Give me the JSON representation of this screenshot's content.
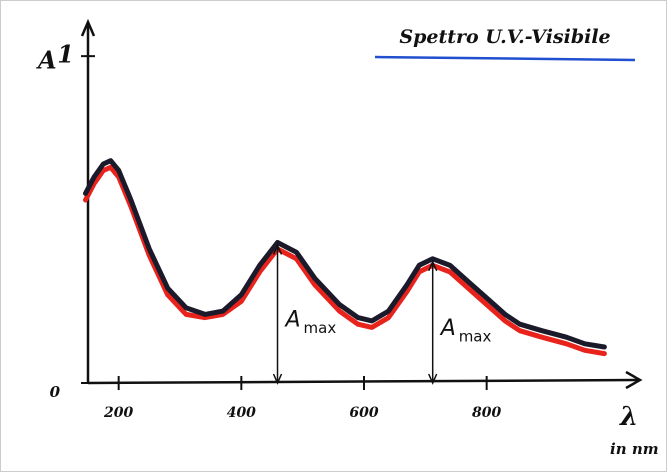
{
  "chart_data": {
    "type": "line",
    "title": "Spettro U.V.-Visibile",
    "y_label": "A",
    "x_label": "λ",
    "x_unit": "in nm",
    "x": [
      146,
      160,
      175,
      187,
      200,
      220,
      250,
      280,
      310,
      341,
      370,
      400,
      430,
      459,
      490,
      520,
      560,
      590,
      613,
      640,
      670,
      690,
      712,
      740,
      770,
      800,
      830,
      854,
      890,
      930,
      960,
      992
    ],
    "series": [
      {
        "color": "#e8231c",
        "values": [
          0.56,
          0.61,
          0.65,
          0.66,
          0.63,
          0.54,
          0.39,
          0.27,
          0.21,
          0.2,
          0.21,
          0.25,
          0.34,
          0.41,
          0.38,
          0.3,
          0.22,
          0.18,
          0.17,
          0.2,
          0.28,
          0.34,
          0.36,
          0.34,
          0.29,
          0.24,
          0.19,
          0.16,
          0.14,
          0.12,
          0.1,
          0.09
        ]
      },
      {
        "color": "#1a1a2a",
        "values": [
          0.58,
          0.63,
          0.67,
          0.68,
          0.65,
          0.56,
          0.41,
          0.29,
          0.23,
          0.21,
          0.22,
          0.27,
          0.36,
          0.43,
          0.4,
          0.32,
          0.24,
          0.2,
          0.19,
          0.22,
          0.3,
          0.36,
          0.38,
          0.36,
          0.31,
          0.26,
          0.21,
          0.18,
          0.16,
          0.14,
          0.12,
          0.11
        ]
      }
    ],
    "xlim": [
      150,
      1050
    ],
    "ylim": [
      0,
      1.08
    ],
    "xticks": [
      200,
      400,
      600,
      800
    ],
    "yticks": [
      0,
      1
    ],
    "annotations": [
      {
        "text": "A",
        "subscript": "max",
        "x": 459,
        "y": 0.43
      },
      {
        "text": "A",
        "subscript": "max",
        "x": 712,
        "y": 0.38
      }
    ]
  }
}
